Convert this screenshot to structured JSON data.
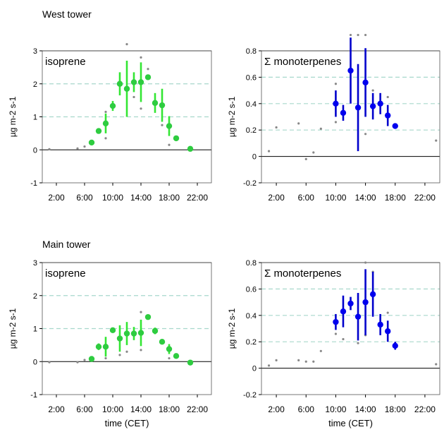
{
  "section_titles": [
    "West tower",
    "Main tower"
  ],
  "colors": {
    "isoprene_marker": "#2ecc40",
    "isoprene_bar": "#33e633",
    "monoterpene_marker": "#0000ee",
    "monoterpene_bar": "#0000cc",
    "extreme_dot": "#888888",
    "grid": "#a8d8cc"
  },
  "chart_data": [
    {
      "type": "scatter",
      "panel": "west-isoprene",
      "title": "isoprene",
      "ylabel": "µg m-2 s-1",
      "xlabel": "",
      "xlim": [
        0,
        24
      ],
      "ylim": [
        -1,
        3
      ],
      "x_ticks": [
        2,
        6,
        10,
        14,
        18,
        22
      ],
      "x_tick_labels": [
        "2:00",
        "6:00",
        "10:00",
        "14:00",
        "18:00",
        "22:00"
      ],
      "y_ticks": [
        -1,
        0,
        1,
        2,
        3
      ],
      "y_tick_labels": [
        "-1",
        "0",
        "1",
        "2",
        "3"
      ],
      "grid_lines": [
        1,
        2
      ],
      "points": [
        {
          "x": 7,
          "y": 0.22,
          "err": 0.04
        },
        {
          "x": 8,
          "y": 0.57,
          "err": 0.05
        },
        {
          "x": 9,
          "y": 0.8,
          "err": 0.3
        },
        {
          "x": 10,
          "y": 1.33,
          "err": 0.15
        },
        {
          "x": 11,
          "y": 2.0,
          "err": 0.35
        },
        {
          "x": 12,
          "y": 1.85,
          "err": 0.85
        },
        {
          "x": 13,
          "y": 2.05,
          "err": 0.3
        },
        {
          "x": 14,
          "y": 2.05,
          "err": 0.6
        },
        {
          "x": 15,
          "y": 2.2,
          "err": 0.05
        },
        {
          "x": 16,
          "y": 1.42,
          "err": 0.3
        },
        {
          "x": 17,
          "y": 1.35,
          "err": 0.5
        },
        {
          "x": 18,
          "y": 0.72,
          "err": 0.3
        },
        {
          "x": 19,
          "y": 0.35,
          "err": 0.05
        },
        {
          "x": 21,
          "y": 0.03,
          "err": 0.03
        }
      ],
      "extremes": [
        {
          "x": 1,
          "y": 0.02
        },
        {
          "x": 5,
          "y": 0.04
        },
        {
          "x": 6,
          "y": 0.1
        },
        {
          "x": 9,
          "y": 0.35
        },
        {
          "x": 9,
          "y": 1.15
        },
        {
          "x": 12,
          "y": 3.2
        },
        {
          "x": 14,
          "y": 1.25
        },
        {
          "x": 14,
          "y": 2.8
        },
        {
          "x": 13,
          "y": 1.6
        },
        {
          "x": 15,
          "y": 2.45
        },
        {
          "x": 18,
          "y": 0.15
        },
        {
          "x": 17,
          "y": 0.75
        }
      ]
    },
    {
      "type": "scatter",
      "panel": "west-monoterpenes",
      "title": "Σ monoterpenes",
      "ylabel": "µg m-2 s-1",
      "xlabel": "",
      "xlim": [
        0,
        24
      ],
      "ylim": [
        -0.2,
        0.8
      ],
      "x_ticks": [
        2,
        6,
        10,
        14,
        18,
        22
      ],
      "x_tick_labels": [
        "2:00",
        "6:00",
        "10:00",
        "14:00",
        "18:00",
        "22:00"
      ],
      "y_ticks": [
        -0.2,
        0,
        0.2,
        0.4,
        0.6,
        0.8
      ],
      "y_tick_labels": [
        "-0.2",
        "0",
        "0.2",
        "0.4",
        "0.6",
        "0.8"
      ],
      "grid_lines": [
        0.2,
        0.4,
        0.6
      ],
      "points": [
        {
          "x": 10,
          "y": 0.4,
          "err": 0.1
        },
        {
          "x": 11,
          "y": 0.33,
          "err": 0.06
        },
        {
          "x": 12,
          "y": 0.65,
          "err": 0.25
        },
        {
          "x": 13,
          "y": 0.37,
          "err": 0.33
        },
        {
          "x": 14,
          "y": 0.56,
          "err": 0.26
        },
        {
          "x": 15,
          "y": 0.38,
          "err": 0.1
        },
        {
          "x": 16,
          "y": 0.4,
          "err": 0.08
        },
        {
          "x": 17,
          "y": 0.31,
          "err": 0.08
        },
        {
          "x": 18,
          "y": 0.23,
          "err": 0.0
        }
      ],
      "extremes": [
        {
          "x": 1,
          "y": 0.04
        },
        {
          "x": 2,
          "y": 0.22
        },
        {
          "x": 5,
          "y": 0.25
        },
        {
          "x": 6,
          "y": -0.02
        },
        {
          "x": 7,
          "y": 0.03
        },
        {
          "x": 8,
          "y": 0.21
        },
        {
          "x": 10,
          "y": 0.55
        },
        {
          "x": 10,
          "y": 0.26
        },
        {
          "x": 12,
          "y": 0.92
        },
        {
          "x": 13,
          "y": 0.92
        },
        {
          "x": 14,
          "y": 0.92
        },
        {
          "x": 14,
          "y": 0.17
        },
        {
          "x": 15,
          "y": 0.5
        },
        {
          "x": 17,
          "y": 0.45
        },
        {
          "x": 23.5,
          "y": 0.12
        }
      ]
    },
    {
      "type": "scatter",
      "panel": "main-isoprene",
      "title": "isoprene",
      "ylabel": "µg m-2 s-1",
      "xlabel": "time (CET)",
      "xlim": [
        0,
        24
      ],
      "ylim": [
        -1,
        3
      ],
      "x_ticks": [
        2,
        6,
        10,
        14,
        18,
        22
      ],
      "x_tick_labels": [
        "2:00",
        "6:00",
        "10:00",
        "14:00",
        "18:00",
        "22:00"
      ],
      "y_ticks": [
        -1,
        0,
        1,
        2,
        3
      ],
      "y_tick_labels": [
        "-1",
        "0",
        "1",
        "2",
        "3"
      ],
      "grid_lines": [
        1,
        2
      ],
      "points": [
        {
          "x": 7,
          "y": 0.08,
          "err": 0.05
        },
        {
          "x": 8,
          "y": 0.45,
          "err": 0.1
        },
        {
          "x": 9,
          "y": 0.45,
          "err": 0.3
        },
        {
          "x": 10,
          "y": 0.95,
          "err": 0.05
        },
        {
          "x": 11,
          "y": 0.7,
          "err": 0.4
        },
        {
          "x": 12,
          "y": 0.85,
          "err": 0.35
        },
        {
          "x": 13,
          "y": 0.85,
          "err": 0.2
        },
        {
          "x": 14,
          "y": 0.87,
          "err": 0.4
        },
        {
          "x": 15,
          "y": 1.35,
          "err": 0.08
        },
        {
          "x": 16,
          "y": 0.93,
          "err": 0.1
        },
        {
          "x": 17,
          "y": 0.6,
          "err": 0.05
        },
        {
          "x": 18,
          "y": 0.38,
          "err": 0.15
        },
        {
          "x": 19,
          "y": 0.17,
          "err": 0.05
        },
        {
          "x": 21,
          "y": -0.03,
          "err": 0.03
        }
      ],
      "extremes": [
        {
          "x": 1,
          "y": -0.02
        },
        {
          "x": 5,
          "y": -0.02
        },
        {
          "x": 6,
          "y": 0.05
        },
        {
          "x": 9,
          "y": 0.1
        },
        {
          "x": 11,
          "y": 0.2
        },
        {
          "x": 12,
          "y": 0.3
        },
        {
          "x": 14,
          "y": 1.5
        },
        {
          "x": 14,
          "y": 0.35
        },
        {
          "x": 18,
          "y": 0.1
        }
      ]
    },
    {
      "type": "scatter",
      "panel": "main-monoterpenes",
      "title": "Σ monoterpenes",
      "ylabel": "µg m-2 s-1",
      "xlabel": "time (CET)",
      "xlim": [
        0,
        24
      ],
      "ylim": [
        -0.2,
        0.8
      ],
      "x_ticks": [
        2,
        6,
        10,
        14,
        18,
        22
      ],
      "x_tick_labels": [
        "2:00",
        "6:00",
        "10:00",
        "14:00",
        "18:00",
        "22:00"
      ],
      "y_ticks": [
        -0.2,
        0,
        0.2,
        0.4,
        0.6,
        0.8
      ],
      "y_tick_labels": [
        "-0.2",
        "0",
        "0.2",
        "0.4",
        "0.6",
        "0.8"
      ],
      "grid_lines": [
        0.2,
        0.4,
        0.6
      ],
      "points": [
        {
          "x": 10,
          "y": 0.35,
          "err": 0.06
        },
        {
          "x": 11,
          "y": 0.43,
          "err": 0.12
        },
        {
          "x": 12,
          "y": 0.49,
          "err": 0.05
        },
        {
          "x": 13,
          "y": 0.39,
          "err": 0.18
        },
        {
          "x": 14,
          "y": 0.5,
          "err": 0.25
        },
        {
          "x": 15,
          "y": 0.56,
          "err": 0.17
        },
        {
          "x": 16,
          "y": 0.33,
          "err": 0.08
        },
        {
          "x": 17,
          "y": 0.28,
          "err": 0.08
        },
        {
          "x": 18,
          "y": 0.17,
          "err": 0.03
        }
      ],
      "extremes": [
        {
          "x": 1,
          "y": 0.02
        },
        {
          "x": 2,
          "y": 0.06
        },
        {
          "x": 5,
          "y": 0.06
        },
        {
          "x": 6,
          "y": 0.05
        },
        {
          "x": 7,
          "y": 0.05
        },
        {
          "x": 8,
          "y": 0.13
        },
        {
          "x": 10,
          "y": 0.26
        },
        {
          "x": 11,
          "y": 0.22
        },
        {
          "x": 13,
          "y": 0.19
        },
        {
          "x": 14,
          "y": 0.8
        },
        {
          "x": 15,
          "y": 0.73
        },
        {
          "x": 14,
          "y": 0.25
        },
        {
          "x": 17,
          "y": 0.42
        },
        {
          "x": 23.5,
          "y": 0.03
        }
      ]
    }
  ]
}
